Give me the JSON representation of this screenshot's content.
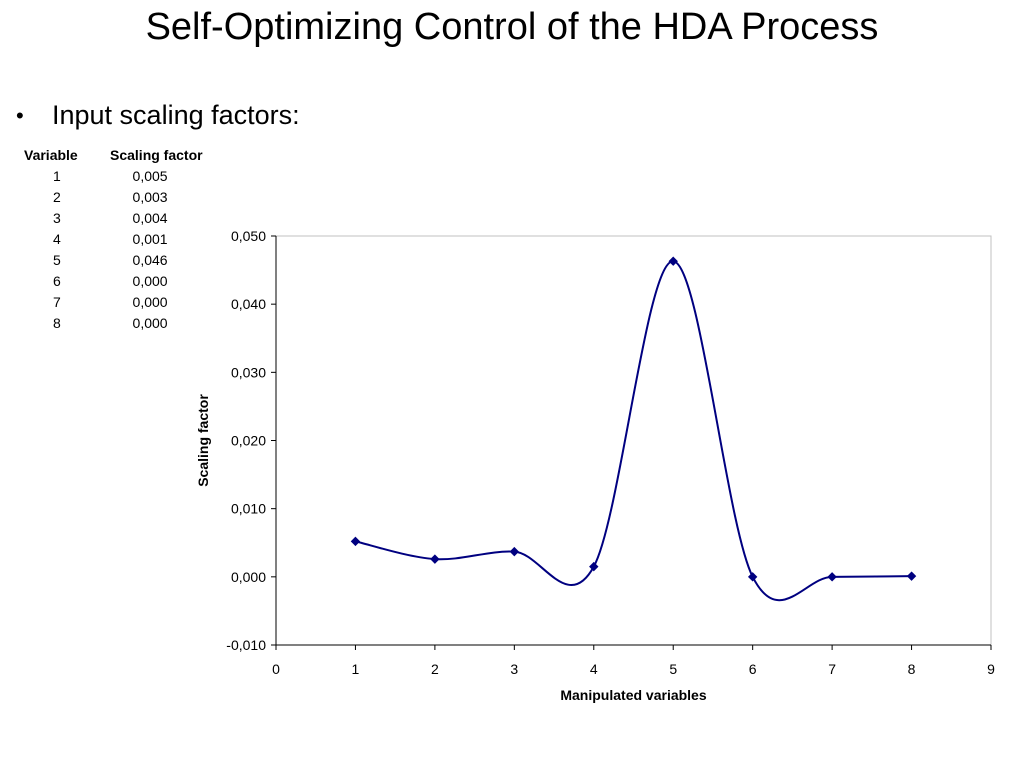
{
  "slide": {
    "title": "Self-Optimizing Control of the HDA Process",
    "bullet": "Input scaling factors:"
  },
  "table": {
    "headers": [
      "Variable",
      "Scaling factor"
    ],
    "rows": [
      {
        "variable": "1",
        "value": "0,005"
      },
      {
        "variable": "2",
        "value": "0,003"
      },
      {
        "variable": "3",
        "value": "0,004"
      },
      {
        "variable": "4",
        "value": "0,001"
      },
      {
        "variable": "5",
        "value": "0,046"
      },
      {
        "variable": "6",
        "value": "0,000"
      },
      {
        "variable": "7",
        "value": "0,000"
      },
      {
        "variable": "8",
        "value": "0,000"
      }
    ]
  },
  "chart_data": {
    "type": "line",
    "smooth": true,
    "x": [
      1,
      2,
      3,
      4,
      5,
      6,
      7,
      8
    ],
    "series": [
      {
        "values": [
          0.0052,
          0.0026,
          0.0037,
          0.0015,
          0.0463,
          0.0,
          0.0,
          0.0001
        ]
      }
    ],
    "xlabel": "Manipulated variables",
    "ylabel": "Scaling factor",
    "xlim": [
      0,
      9
    ],
    "ylim": [
      -0.01,
      0.05
    ],
    "x_ticks": [
      "0",
      "1",
      "2",
      "3",
      "4",
      "5",
      "6",
      "7",
      "8",
      "9"
    ],
    "y_ticks": [
      "-0,010",
      "0,000",
      "0,010",
      "0,020",
      "0,030",
      "0,040",
      "0,050"
    ],
    "line_color": "#000080",
    "marker": "diamond",
    "grid": false,
    "legend": "none"
  }
}
